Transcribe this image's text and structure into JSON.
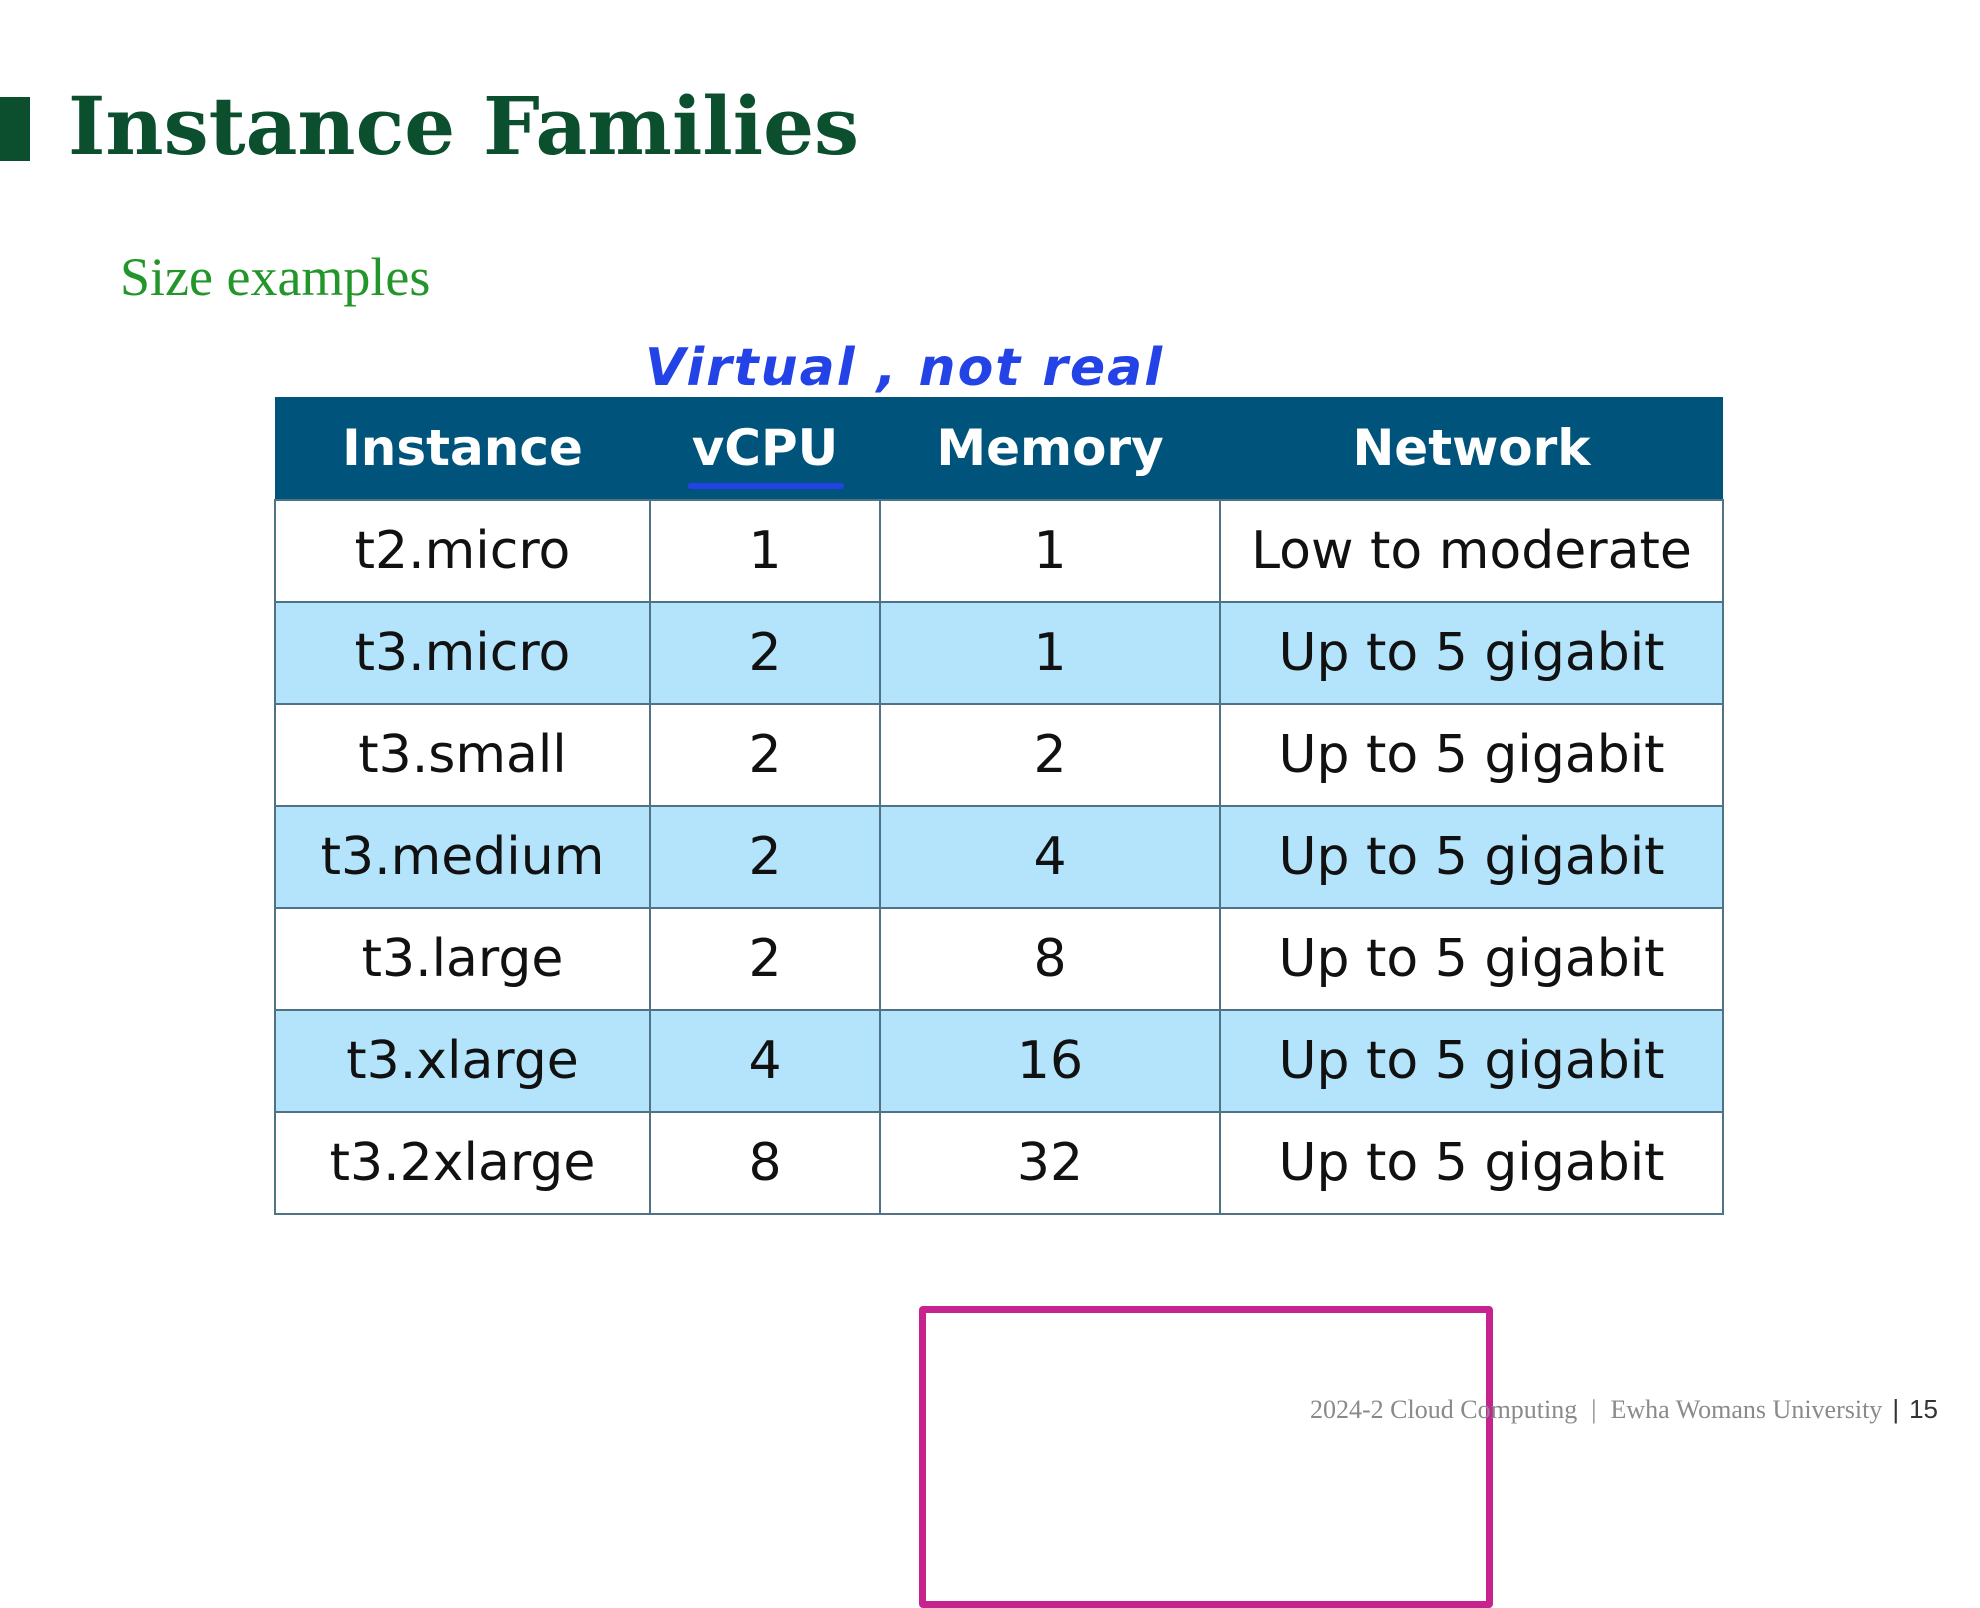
{
  "slide": {
    "title": "Instance Families",
    "subtitle": "Size examples",
    "annotation": "Virtual , not real"
  },
  "table": {
    "headers": [
      "Instance",
      "vCPU",
      "Memory",
      "Network"
    ],
    "rows": [
      [
        "t2.micro",
        "1",
        "1",
        "Low to moderate"
      ],
      [
        "t3.micro",
        "2",
        "1",
        "Up to 5 gigabit"
      ],
      [
        "t3.small",
        "2",
        "2",
        "Up to 5 gigabit"
      ],
      [
        "t3.medium",
        "2",
        "4",
        "Up to 5 gigabit"
      ],
      [
        "t3.large",
        "2",
        "8",
        "Up to 5 gigabit"
      ],
      [
        "t3.xlarge",
        "4",
        "16",
        "Up to 5 gigabit"
      ],
      [
        "t3.2xlarge",
        "8",
        "32",
        "Up to 5 gigabit"
      ]
    ]
  },
  "colors": {
    "title": "#0b4f2f",
    "subtitle": "#23962b",
    "header_bg": "#00537a",
    "alt_row_bg": "#b3e4fb",
    "annotation": "#2343e6",
    "highlight": "#c7238f"
  },
  "footer": {
    "course": "2024-2 Cloud Computing",
    "separator": "|",
    "university": "Ewha Womans University",
    "page_prefix": "|",
    "page": "15"
  }
}
